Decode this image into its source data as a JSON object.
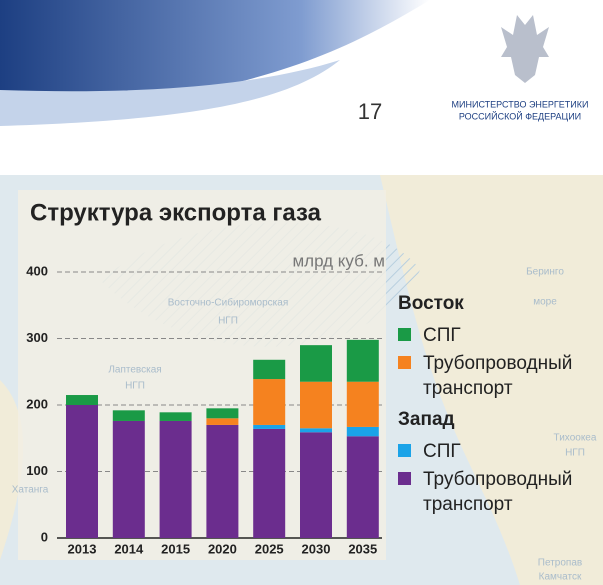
{
  "header": {
    "page_number": "17",
    "ministry_line1": "МИНИСТЕРСТВО ЭНЕРГЕТИКИ",
    "ministry_line2": "РОССИЙСКОЙ ФЕДЕРАЦИИ"
  },
  "map_labels": [
    "Восточно-Сибироморская",
    "НГП",
    "Лаптевская",
    "НГП",
    "Беринго",
    "море",
    "Хатанга",
    "Тихоокеа",
    "НГП",
    "Петропав",
    "Камчатск"
  ],
  "chart_data": {
    "type": "bar",
    "stacked": true,
    "title": "Структура экспорта газа",
    "unit_label": "млрд куб. м",
    "categories": [
      "2013",
      "2014",
      "2015",
      "2020",
      "2025",
      "2030",
      "2035"
    ],
    "ylim": [
      0,
      400
    ],
    "yticks": [
      0,
      100,
      200,
      300,
      400
    ],
    "grid": true,
    "groups": [
      {
        "name": "Запад",
        "series": [
          {
            "name": "Трубопроводный транспорт",
            "color": "#6b2d8e",
            "values": [
              200,
              176,
              176,
              170,
              164,
              159,
              153
            ]
          },
          {
            "name": "СПГ",
            "color": "#1aa3e8",
            "values": [
              0,
              0,
              0,
              0,
              6,
              6,
              14
            ]
          }
        ]
      },
      {
        "name": "Восток",
        "series": [
          {
            "name": "Трубопроводный транспорт",
            "color": "#f5821f",
            "values": [
              0,
              0,
              0,
              10,
              69,
              70,
              68
            ]
          },
          {
            "name": "СПГ",
            "color": "#1a9a46",
            "values": [
              15,
              16,
              13,
              15,
              29,
              55,
              63
            ]
          }
        ]
      }
    ]
  }
}
